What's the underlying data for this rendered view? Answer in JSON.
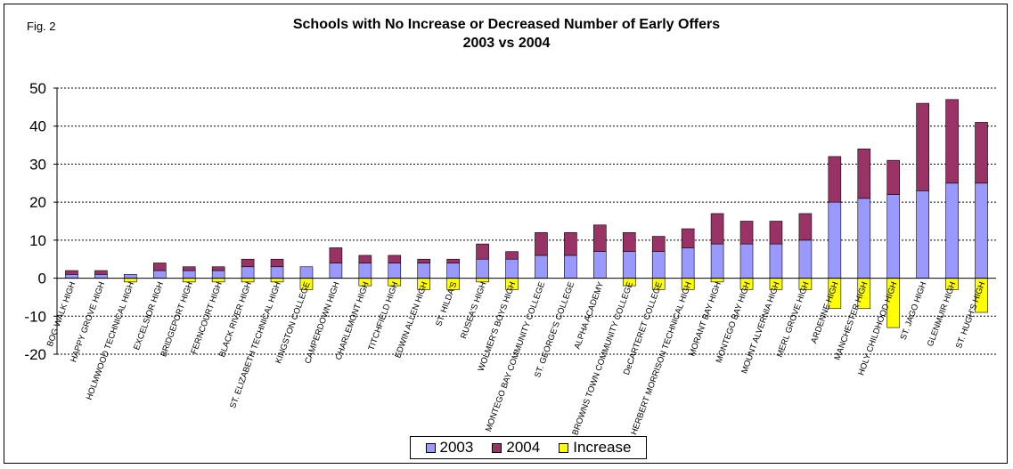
{
  "figure_label": "Fig. 2",
  "colors": {
    "s2003": "#9999ff",
    "s2004": "#993366",
    "increase": "#ffff00"
  },
  "chart_data": {
    "type": "bar",
    "stacked": true,
    "title": "Schools with No Increase or Decreased Number of Early Offers",
    "subtitle": "2003 vs 2004",
    "xlabel": "",
    "ylabel": "",
    "ylim": [
      -20,
      50
    ],
    "yticks": [
      -20,
      -10,
      0,
      10,
      20,
      30,
      40,
      50
    ],
    "grid": true,
    "legend_position": "bottom",
    "categories": [
      "BOG WALK HIGH",
      "HAPPY GROVE HIGH",
      "HOLMWOOD TECHNICAL HIGH",
      "EXCELSIOR HIGH",
      "BRIDGEPORT HIGH",
      "FERNCOURT HIGH",
      "BLACK RIVER HIGH",
      "ST. ELIZABETH TECHNICAL HIGH",
      "KINGSTON COLLEGE",
      "CAMPERDOWN HIGH",
      "CHARLEMONT HIGH",
      "TITCHFIELD HIGH",
      "EDWIN ALLEN HIGH",
      "ST. HILDA'S",
      "RUSEA'S HIGH",
      "WOLMER'S BOYS HIGH",
      "MONTEGO BAY COMMUNITY COLLEGE",
      "ST. GEORGE'S COLLEGE",
      "ALPHA ACADEMY",
      "BROWNS TOWN COMMUNITY COLLEGE",
      "DeCARTERET COLLEGE",
      "HERBERT MORRISON TECHNICAL HIGH",
      "MORANT BAY HIGH",
      "MONTEGO BAY HIGH",
      "MOUNT ALVERNIA HIGH",
      "MERL GROVE HIGH",
      "ARDENNE HIGH",
      "MANCHESTER HIGH",
      "HOLY CHILDHOOD HIGH",
      "ST. JAGO HIGH",
      "GLENMUIR HIGH",
      "ST. HUGH'S HIGH"
    ],
    "series": [
      {
        "name": "2003",
        "values": [
          1,
          1,
          1,
          2,
          2,
          2,
          3,
          3,
          3,
          4,
          4,
          4,
          4,
          4,
          5,
          5,
          6,
          6,
          7,
          7,
          7,
          8,
          9,
          9,
          9,
          10,
          20,
          21,
          22,
          23,
          25,
          25
        ]
      },
      {
        "name": "2004",
        "values": [
          1,
          1,
          0,
          2,
          1,
          1,
          2,
          2,
          0,
          4,
          2,
          2,
          1,
          1,
          4,
          2,
          6,
          6,
          7,
          5,
          4,
          5,
          8,
          6,
          6,
          7,
          12,
          13,
          9,
          23,
          22,
          16
        ]
      },
      {
        "name": "Increase",
        "values": [
          0,
          0,
          -1,
          0,
          -1,
          -1,
          -1,
          -1,
          -3,
          0,
          -2,
          -2,
          -3,
          -3,
          -1,
          -3,
          0,
          0,
          0,
          -2,
          -3,
          -3,
          -1,
          -3,
          -3,
          -3,
          -8,
          -8,
          -13,
          0,
          -3,
          -9
        ]
      }
    ]
  }
}
